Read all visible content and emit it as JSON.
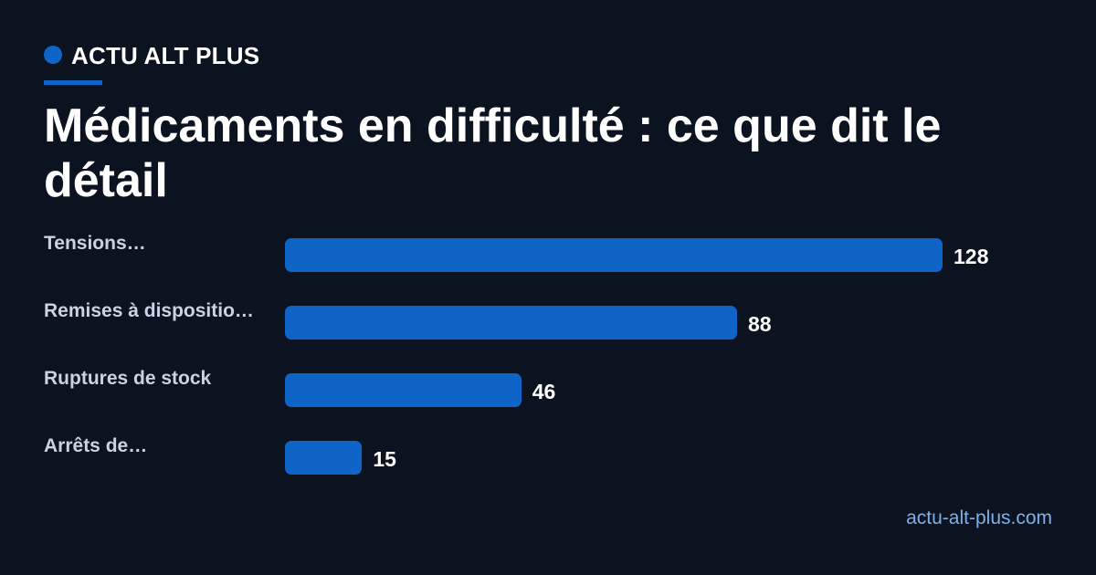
{
  "brand": {
    "name": "ACTU ALT PLUS",
    "accent_color": "#0f64c8"
  },
  "page": {
    "title": "Médicaments en difficulté : ce que dit le détail",
    "footer_url": "actu-alt-plus.com"
  },
  "chart_data": {
    "type": "bar",
    "orientation": "horizontal",
    "title": "Médicaments en difficulté : ce que dit le détail",
    "categories": [
      "Tensions…",
      "Remises à dispositio…",
      "Ruptures de stock",
      "Arrêts de…"
    ],
    "values": [
      128,
      88,
      46,
      15
    ],
    "xlim": [
      0,
      128
    ],
    "grid": false,
    "legend": "none",
    "bar_color": "#0f64c8"
  }
}
